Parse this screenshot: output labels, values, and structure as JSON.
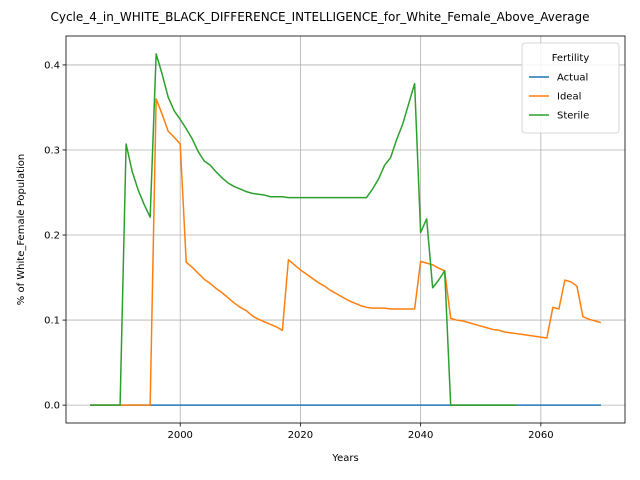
{
  "chart_data": {
    "type": "line",
    "title": "Cycle_4_in_WHITE_BLACK_DIFFERENCE_INTELLIGENCE_for_White_Female_Above_Average",
    "xlabel": "Years",
    "ylabel": "% of White_Female Population",
    "xlim": [
      1981,
      2074
    ],
    "ylim": [
      -0.021,
      0.434
    ],
    "xticks": [
      2000,
      2020,
      2040,
      2060
    ],
    "yticks": [
      0.0,
      0.1,
      0.2,
      0.3,
      0.4
    ],
    "grid": true,
    "legend": {
      "title": "Fertility",
      "placement": "top-right"
    },
    "series": [
      {
        "name": "Actual",
        "color": "#1f77b4",
        "points": [
          [
            1985,
            0.0
          ],
          [
            2070,
            0.0
          ]
        ]
      },
      {
        "name": "Ideal",
        "color": "#ff7f0e",
        "points": [
          [
            1985,
            0.0
          ],
          [
            1990,
            0.0
          ],
          [
            1995,
            0.0
          ],
          [
            1996,
            0.36
          ],
          [
            1997,
            0.342
          ],
          [
            1998,
            0.322
          ],
          [
            1999,
            0.315
          ],
          [
            2000,
            0.307
          ],
          [
            2001,
            0.168
          ],
          [
            2002,
            0.162
          ],
          [
            2003,
            0.155
          ],
          [
            2004,
            0.148
          ],
          [
            2005,
            0.143
          ],
          [
            2006,
            0.137
          ],
          [
            2007,
            0.132
          ],
          [
            2008,
            0.126
          ],
          [
            2009,
            0.12
          ],
          [
            2010,
            0.115
          ],
          [
            2011,
            0.111
          ],
          [
            2012,
            0.105
          ],
          [
            2013,
            0.101
          ],
          [
            2014,
            0.098
          ],
          [
            2015,
            0.095
          ],
          [
            2016,
            0.092
          ],
          [
            2017,
            0.088
          ],
          [
            2018,
            0.171
          ],
          [
            2019,
            0.165
          ],
          [
            2020,
            0.159
          ],
          [
            2021,
            0.154
          ],
          [
            2022,
            0.149
          ],
          [
            2023,
            0.144
          ],
          [
            2024,
            0.14
          ],
          [
            2025,
            0.135
          ],
          [
            2026,
            0.131
          ],
          [
            2027,
            0.127
          ],
          [
            2028,
            0.123
          ],
          [
            2029,
            0.12
          ],
          [
            2030,
            0.117
          ],
          [
            2031,
            0.115
          ],
          [
            2032,
            0.114
          ],
          [
            2033,
            0.114
          ],
          [
            2034,
            0.114
          ],
          [
            2035,
            0.113
          ],
          [
            2036,
            0.113
          ],
          [
            2037,
            0.113
          ],
          [
            2038,
            0.113
          ],
          [
            2039,
            0.113
          ],
          [
            2040,
            0.169
          ],
          [
            2041,
            0.167
          ],
          [
            2042,
            0.165
          ],
          [
            2043,
            0.161
          ],
          [
            2044,
            0.158
          ],
          [
            2045,
            0.102
          ],
          [
            2046,
            0.1
          ],
          [
            2047,
            0.099
          ],
          [
            2048,
            0.097
          ],
          [
            2049,
            0.095
          ],
          [
            2050,
            0.093
          ],
          [
            2051,
            0.091
          ],
          [
            2052,
            0.089
          ],
          [
            2053,
            0.088
          ],
          [
            2054,
            0.086
          ],
          [
            2055,
            0.085
          ],
          [
            2056,
            0.084
          ],
          [
            2057,
            0.083
          ],
          [
            2058,
            0.082
          ],
          [
            2059,
            0.081
          ],
          [
            2060,
            0.08
          ],
          [
            2061,
            0.079
          ],
          [
            2062,
            0.115
          ],
          [
            2063,
            0.113
          ],
          [
            2064,
            0.147
          ],
          [
            2065,
            0.145
          ],
          [
            2066,
            0.14
          ],
          [
            2067,
            0.104
          ],
          [
            2068,
            0.101
          ],
          [
            2069,
            0.099
          ],
          [
            2070,
            0.097
          ]
        ]
      },
      {
        "name": "Sterile",
        "color": "#2ca02c",
        "points": [
          [
            1985,
            0.0
          ],
          [
            1990,
            0.0
          ],
          [
            1991,
            0.307
          ],
          [
            1992,
            0.275
          ],
          [
            1993,
            0.253
          ],
          [
            1994,
            0.236
          ],
          [
            1995,
            0.221
          ],
          [
            1996,
            0.413
          ],
          [
            1997,
            0.389
          ],
          [
            1998,
            0.362
          ],
          [
            1999,
            0.346
          ],
          [
            2000,
            0.336
          ],
          [
            2001,
            0.325
          ],
          [
            2002,
            0.313
          ],
          [
            2003,
            0.298
          ],
          [
            2004,
            0.287
          ],
          [
            2005,
            0.282
          ],
          [
            2006,
            0.274
          ],
          [
            2007,
            0.267
          ],
          [
            2008,
            0.261
          ],
          [
            2009,
            0.257
          ],
          [
            2010,
            0.254
          ],
          [
            2011,
            0.251
          ],
          [
            2012,
            0.249
          ],
          [
            2013,
            0.248
          ],
          [
            2014,
            0.247
          ],
          [
            2015,
            0.245
          ],
          [
            2016,
            0.245
          ],
          [
            2017,
            0.245
          ],
          [
            2018,
            0.244
          ],
          [
            2019,
            0.244
          ],
          [
            2020,
            0.244
          ],
          [
            2021,
            0.244
          ],
          [
            2022,
            0.244
          ],
          [
            2023,
            0.244
          ],
          [
            2024,
            0.244
          ],
          [
            2025,
            0.244
          ],
          [
            2026,
            0.244
          ],
          [
            2027,
            0.244
          ],
          [
            2028,
            0.244
          ],
          [
            2029,
            0.244
          ],
          [
            2030,
            0.244
          ],
          [
            2031,
            0.244
          ],
          [
            2032,
            0.254
          ],
          [
            2033,
            0.266
          ],
          [
            2034,
            0.282
          ],
          [
            2035,
            0.291
          ],
          [
            2036,
            0.312
          ],
          [
            2037,
            0.33
          ],
          [
            2038,
            0.354
          ],
          [
            2039,
            0.378
          ],
          [
            2040,
            0.203
          ],
          [
            2041,
            0.219
          ],
          [
            2042,
            0.138
          ],
          [
            2043,
            0.147
          ],
          [
            2044,
            0.158
          ],
          [
            2045,
            0.0
          ],
          [
            2050,
            0.0
          ],
          [
            2055,
            0.0
          ],
          [
            2056,
            0.0
          ]
        ]
      }
    ]
  }
}
